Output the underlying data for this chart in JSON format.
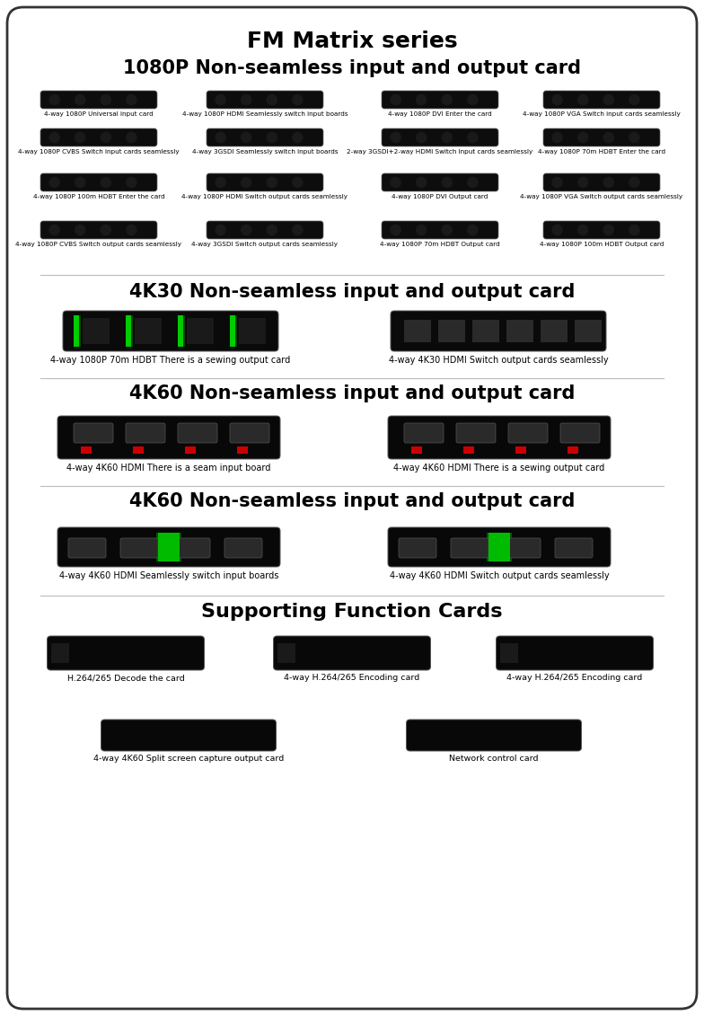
{
  "bg_color": "#ffffff",
  "border_color": "#444444",
  "title_line1": "FM Matrix series",
  "title_line2": "1080P Non-seamless input and output card",
  "section2_title": "4K30 Non-seamless input and output card",
  "section3_title": "4K60 Non-seamless input and output card",
  "section4_title": "4K60 Non-seamless input and output card",
  "section5_title": "Supporting Function Cards",
  "row1_items": [
    "4-way 1080P Universal input card",
    "4-way 1080P HDMI Seamlessly switch input boards",
    "4-way 1080P DVI Enter the card",
    "4-way 1080P VGA Switch input cards seamlessly"
  ],
  "row2_items": [
    "4-way 1080P CVBS Switch input cards seamlessly",
    "4-way 3GSDI Seamlessly switch input boards",
    "2-way 3GSDI+2-way HDMI Switch input cards seamlessly",
    "4-way 1080P 70m HDBT Enter the card"
  ],
  "row3_items": [
    "4-way 1080P 100m HDBT Enter the card",
    "4-way 1080P HDMI Switch output cards seamlessly",
    "4-way 1080P DVI Output card",
    "4-way 1080P VGA Switch output cards seamlessly"
  ],
  "row4_items": [
    "4-way 1080P CVBS Switch output cards seamlessly",
    "4-way 3GSDI Switch output cards seamlessly",
    "4-way 1080P 70m HDBT Output card",
    "4-way 1080P 100m HDBT Output card"
  ],
  "sec2_items": [
    "4-way 1080P 70m HDBT There is a sewing output card",
    "4-way 4K30 HDMI Switch output cards seamlessly"
  ],
  "sec3_items": [
    "4-way 4K60 HDMI There is a seam input board",
    "4-way 4K60 HDMI There is a sewing output card"
  ],
  "sec4_items": [
    "4-way 4K60 HDMI Seamlessly switch input boards",
    "4-way 4K60 HDMI Switch output cards seamlessly"
  ],
  "sec5_row1": [
    "H.264/265 Decode the card",
    "4-way H.264/265 Encoding card",
    "4-way H.264/265 Encoding card"
  ],
  "sec5_row2": [
    "4-way 4K60 Split screen capture output card",
    "Network control card"
  ]
}
